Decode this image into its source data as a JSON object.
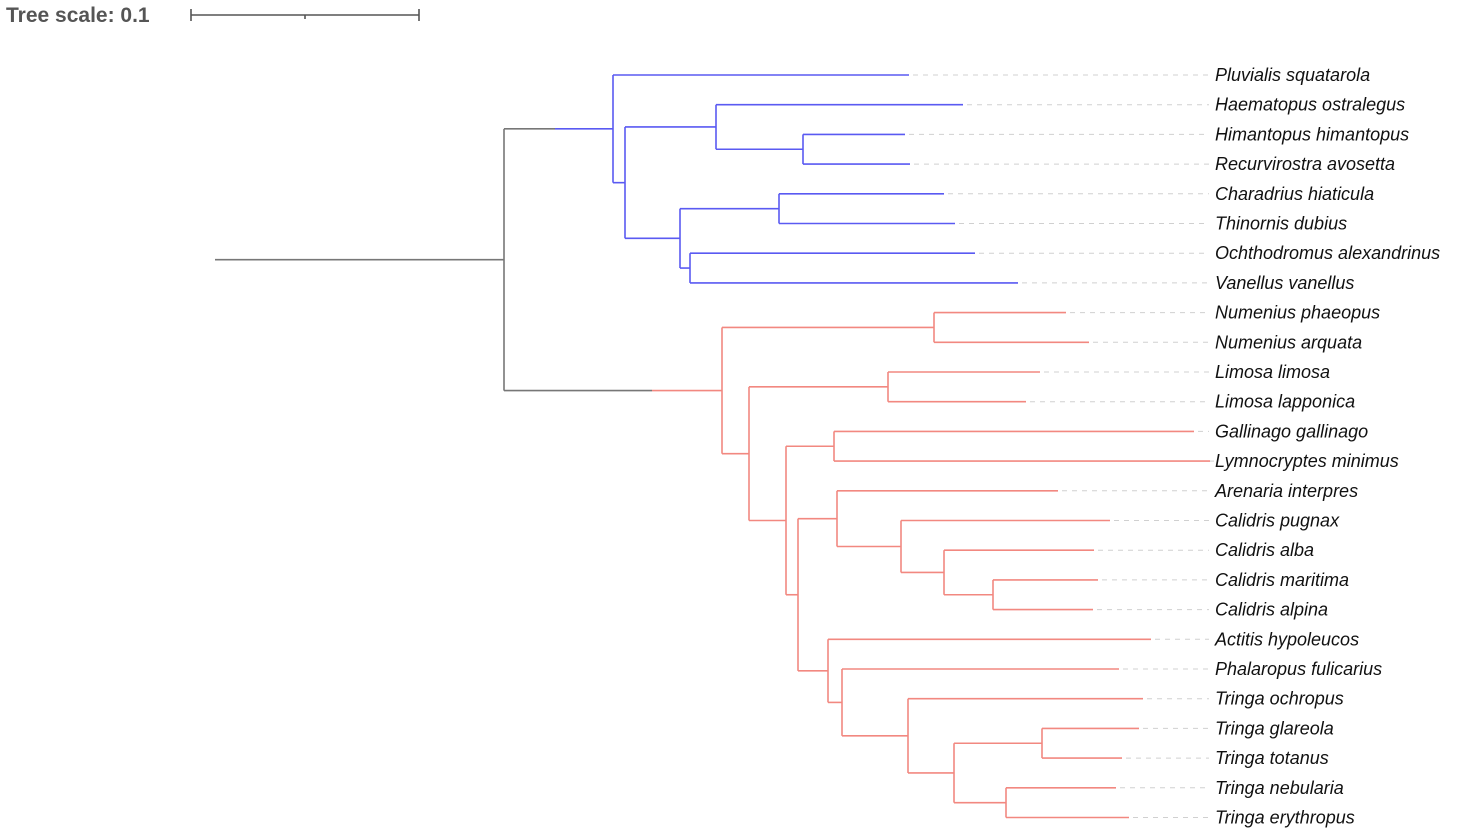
{
  "scale": {
    "title": "Tree scale: 0.1"
  },
  "colors": {
    "root": "#777777",
    "blue_clade": "#5a5af2",
    "red_clade": "#f28880"
  },
  "taxa": [
    "Pluvialis squatarola",
    "Haematopus ostralegus",
    "Himantopus himantopus",
    "Recurvirostra avosetta",
    "Charadrius hiaticula",
    "Thinornis dubius",
    "Ochthodromus alexandrinus",
    "Vanellus vanellus",
    "Numenius phaeopus",
    "Numenius arquata",
    "Limosa limosa",
    "Limosa lapponica",
    "Gallinago gallinago",
    "Lymnocryptes minimus",
    "Arenaria interpres",
    "Calidris pugnax",
    "Calidris alba",
    "Calidris maritima",
    "Calidris alpina",
    "Actitis hypoleucos",
    "Phalaropus fulicarius",
    "Tringa ochropus",
    "Tringa glareola",
    "Tringa totanus",
    "Tringa nebularia",
    "Tringa erythropus"
  ]
}
